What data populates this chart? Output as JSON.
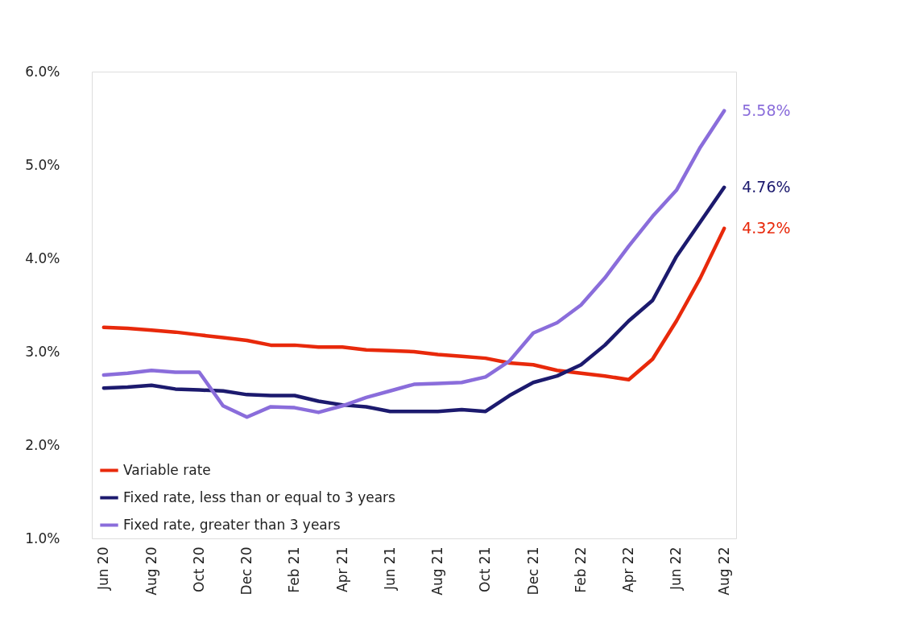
{
  "chart_data": {
    "type": "line",
    "categories": [
      "Jun 20",
      null,
      "Aug 20",
      null,
      "Oct 20",
      null,
      "Dec 20",
      null,
      "Feb 21",
      null,
      "Apr 21",
      null,
      "Jun 21",
      null,
      "Aug 21",
      null,
      "Oct 21",
      null,
      "Dec 21",
      null,
      "Feb 22",
      null,
      "Apr 22",
      null,
      "Jun 22",
      null,
      "Aug 22"
    ],
    "series": [
      {
        "name": "Variable rate",
        "color": "#e8290b",
        "values": [
          3.26,
          3.25,
          3.23,
          3.21,
          3.18,
          3.15,
          3.12,
          3.07,
          3.07,
          3.05,
          3.05,
          3.02,
          3.01,
          3.0,
          2.97,
          2.95,
          2.93,
          2.88,
          2.86,
          2.8,
          2.77,
          2.74,
          2.7,
          2.92,
          3.33,
          3.79,
          4.32
        ]
      },
      {
        "name": "Fixed rate, less than or equal to 3 years",
        "color": "#1c1a6e",
        "values": [
          2.61,
          2.62,
          2.64,
          2.6,
          2.59,
          2.58,
          2.54,
          2.53,
          2.53,
          2.47,
          2.43,
          2.41,
          2.36,
          2.36,
          2.36,
          2.38,
          2.36,
          2.53,
          2.67,
          2.74,
          2.86,
          3.07,
          3.33,
          3.55,
          4.02,
          4.39,
          4.76
        ]
      },
      {
        "name": "Fixed rate, greater than 3 years",
        "color": "#8a6ddb",
        "values": [
          2.75,
          2.77,
          2.8,
          2.78,
          2.78,
          2.42,
          2.3,
          2.41,
          2.4,
          2.35,
          2.42,
          2.51,
          2.58,
          2.65,
          2.66,
          2.67,
          2.73,
          2.9,
          3.2,
          3.31,
          3.5,
          3.79,
          4.13,
          4.45,
          4.73,
          5.19,
          5.58
        ]
      }
    ],
    "ylim": [
      1.0,
      6.0
    ],
    "yticks": [
      {
        "value": 1,
        "label": "1.0%"
      },
      {
        "value": 2,
        "label": "2.0%"
      },
      {
        "value": 3,
        "label": "3.0%"
      },
      {
        "value": 4,
        "label": "4.0%"
      },
      {
        "value": 5,
        "label": "5.0%"
      },
      {
        "value": 6,
        "label": "6.0%"
      }
    ],
    "annotations": [
      {
        "text": "5.58%",
        "x": "Aug 22",
        "y": 5.58
      },
      {
        "text": "4.76%",
        "x": "Aug 22",
        "y": 4.76
      },
      {
        "text": "4.32%",
        "x": "Aug 22",
        "y": 4.32
      }
    ],
    "grid": false,
    "legend": "bottom left",
    "marker": "none",
    "line_style": "solid"
  }
}
